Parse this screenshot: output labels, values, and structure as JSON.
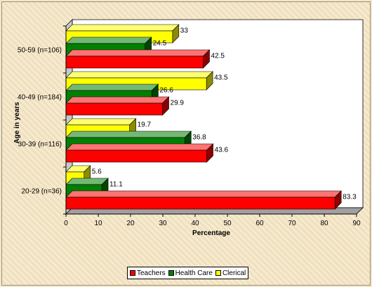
{
  "chart_data": {
    "type": "bar",
    "orientation": "horizontal",
    "title": "",
    "xlabel": "Percentage",
    "ylabel": "Age in years",
    "categories": [
      "20-29 (n=36)",
      "30-39 (n=116)",
      "40-49 (n=184)",
      "50-59 (n=106)"
    ],
    "series": [
      {
        "name": "Teachers",
        "values": [
          83.3,
          43.6,
          29.9,
          42.5
        ],
        "color": "#ff0000"
      },
      {
        "name": "Health Care",
        "values": [
          11.1,
          36.8,
          26.6,
          24.5
        ],
        "color": "#008000"
      },
      {
        "name": "Clerical",
        "values": [
          5.6,
          19.7,
          43.5,
          33
        ],
        "color": "#ffff00"
      }
    ],
    "data_labels": [
      [
        "83.3",
        "11.1",
        "5.6"
      ],
      [
        "43.6",
        "36.8",
        "19.7"
      ],
      [
        "29.9",
        "26.6",
        "43.5"
      ],
      [
        "42.5",
        "24.5",
        "33"
      ]
    ],
    "xlim": [
      0,
      90
    ],
    "xticks": [
      "0",
      "10",
      "20",
      "30",
      "40",
      "50",
      "60",
      "70",
      "80",
      "90"
    ],
    "grid": false,
    "legend_position": "bottom"
  }
}
